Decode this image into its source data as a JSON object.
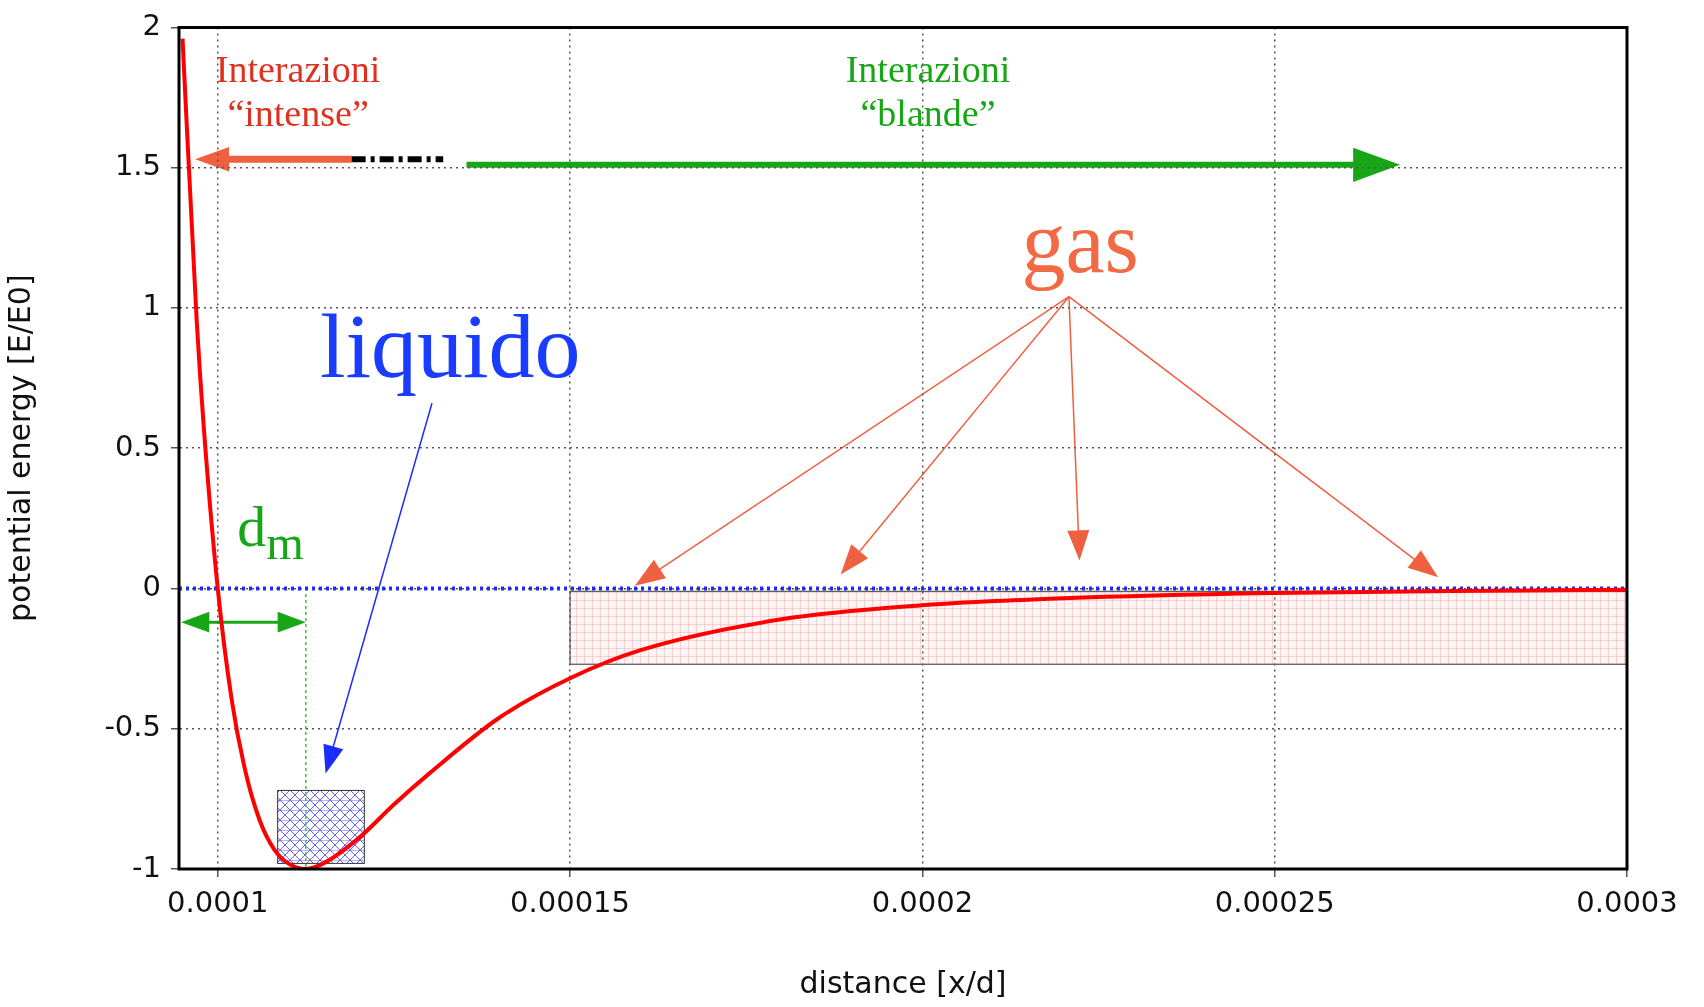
{
  "chart_data": {
    "type": "line",
    "xlabel": "distance [x/d]",
    "ylabel": "potential energy [E/E0]",
    "xlim": [
      9.45e-05,
      0.0003
    ],
    "ylim": [
      -1,
      2
    ],
    "xticks": [
      0.0001,
      0.00015,
      0.0002,
      0.00025,
      0.0003
    ],
    "yticks": [
      -1,
      -0.5,
      0,
      0.5,
      1,
      1.5,
      2
    ],
    "grid": true,
    "legend": false,
    "marker": "none",
    "line_style": "solid",
    "series": [
      {
        "color": "#ff0000",
        "x": [
          9.5e-05,
          9.7e-05,
          9.8e-05,
          0.0001,
          0.000102,
          0.000104,
          0.000106,
          0.000108,
          0.00011,
          0.0001125,
          0.000115,
          0.00012,
          0.000125,
          0.00013,
          0.00014,
          0.00015,
          0.00016,
          0.00018,
          0.0002,
          0.00022,
          0.00025,
          0.00028,
          0.0003
        ],
        "values": [
          1.96,
          0.96,
          0.58,
          0,
          -0.4,
          -0.66,
          -0.83,
          -0.93,
          -0.98,
          -1,
          -0.98,
          -0.89,
          -0.77,
          -0.66,
          -0.46,
          -0.32,
          -0.22,
          -0.11,
          -0.06,
          -0.035,
          -0.016,
          -0.008,
          -0.005
        ]
      }
    ],
    "ref_lines": [
      {
        "axis": "y",
        "value": 0,
        "color": "#1a2cff",
        "line_style": "dotted"
      }
    ],
    "annotations": [
      "Interazioni “intense”",
      "Interazioni “blande”",
      "gas",
      "liquido",
      {
        "text": "d$_{m}$",
        "x": 0.0001125,
        "y": -1
      }
    ]
  }
}
